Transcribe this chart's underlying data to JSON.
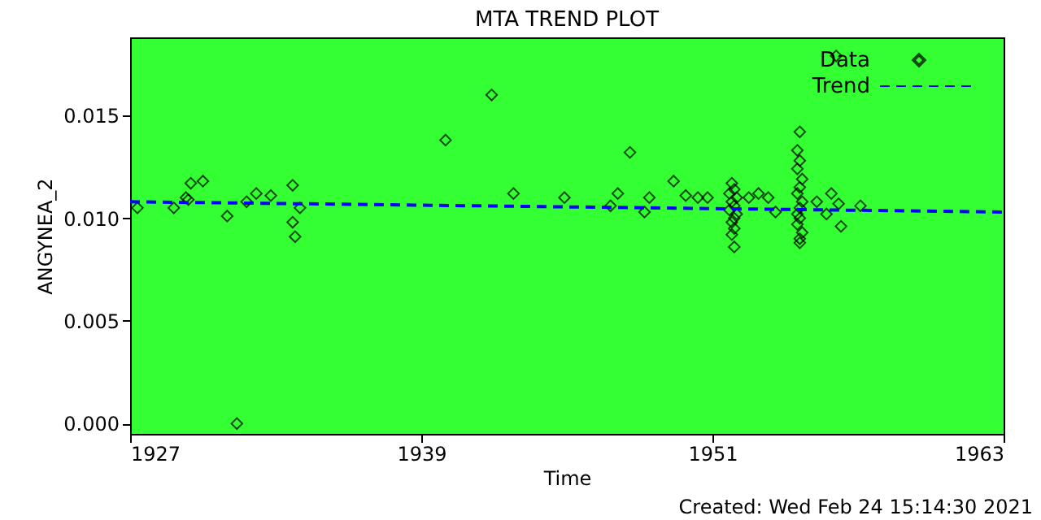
{
  "chart_data": {
    "type": "scatter",
    "title": "MTA TREND PLOT",
    "xlabel": "Time",
    "ylabel": "ANGYNEA_2",
    "xlim": [
      1927,
      1963
    ],
    "xticks": [
      1927,
      1939,
      1951,
      1963
    ],
    "ylim": [
      -0.0005,
      0.0188
    ],
    "yticks": [
      {
        "value": 0,
        "label": "0.000"
      },
      {
        "value": 0.005,
        "label": "0.005"
      },
      {
        "value": 0.01,
        "label": "0.010"
      },
      {
        "value": 0.015,
        "label": "0.015"
      }
    ],
    "grid": false,
    "legend": "top right",
    "annotations": [
      "Created: Wed Feb 24 15:14:30 2021"
    ],
    "series": [
      {
        "name": "Data",
        "marker": "diamond",
        "color": "#000000",
        "x": [
          1927.3,
          1928.8,
          1929.3,
          1929.4,
          1929.5,
          1930.0,
          1931.0,
          1931.4,
          1931.8,
          1932.2,
          1932.8,
          1933.7,
          1933.7,
          1933.8,
          1934.0,
          1940.0,
          1941.9,
          1942.8,
          1944.9,
          1946.8,
          1947.1,
          1947.6,
          1948.2,
          1948.4,
          1949.4,
          1949.9,
          1950.4,
          1950.8,
          1951.8,
          1951.9,
          1951.7,
          1952.0,
          1951.8,
          1951.9,
          1951.7,
          1952.0,
          1951.9,
          1951.8,
          1951.9,
          1951.8,
          1951.9,
          1952.5,
          1952.9,
          1953.3,
          1953.6,
          1954.6,
          1954.5,
          1954.6,
          1954.5,
          1954.7,
          1954.6,
          1954.5,
          1954.7,
          1954.6,
          1954.5,
          1954.6,
          1954.5,
          1954.7,
          1954.6,
          1954.6,
          1955.3,
          1955.7,
          1955.9,
          1956.1,
          1956.2,
          1956.3,
          1957.1
        ],
        "values": [
          0.0105,
          0.0105,
          0.011,
          0.0109,
          0.0117,
          0.0118,
          0.0101,
          0.0,
          0.0108,
          0.0112,
          0.0111,
          0.0116,
          0.0098,
          0.0091,
          0.0105,
          0.0138,
          0.016,
          0.0112,
          0.011,
          0.0106,
          0.0112,
          0.0132,
          0.0103,
          0.011,
          0.0118,
          0.0111,
          0.011,
          0.011,
          0.0117,
          0.0114,
          0.0112,
          0.011,
          0.0108,
          0.0106,
          0.0104,
          0.0102,
          0.01,
          0.0098,
          0.0095,
          0.0092,
          0.0086,
          0.011,
          0.0112,
          0.011,
          0.0103,
          0.0142,
          0.0133,
          0.0128,
          0.0124,
          0.0119,
          0.0115,
          0.0112,
          0.0108,
          0.0105,
          0.0102,
          0.01,
          0.0097,
          0.0093,
          0.009,
          0.0088,
          0.0108,
          0.0102,
          0.0112,
          0.0179,
          0.0107,
          0.0096,
          0.0106
        ]
      },
      {
        "name": "Trend",
        "type": "line",
        "line_style": "dashed",
        "color": "#0000ff",
        "x": [
          1927,
          1963
        ],
        "values": [
          0.0108,
          0.0103
        ]
      }
    ]
  }
}
